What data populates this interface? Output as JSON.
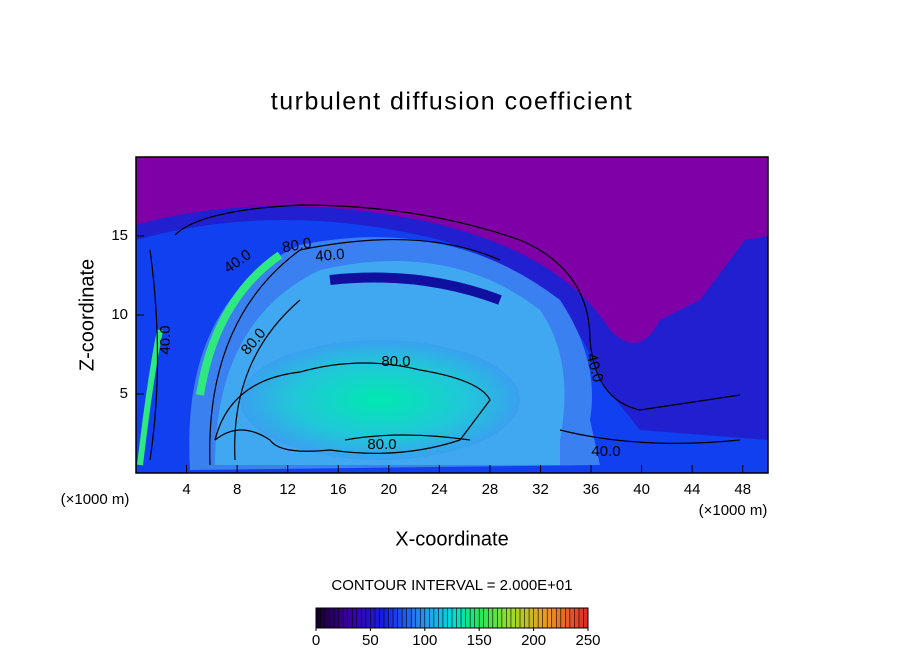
{
  "chart_data": {
    "type": "contour",
    "title": "turbulent diffusion coefficient",
    "xlabel": "X-coordinate",
    "ylabel": "Z-coordinate",
    "x_unit": "(×1000 m)",
    "xlim": [
      0,
      50
    ],
    "xticks": [
      4,
      8,
      12,
      16,
      20,
      24,
      28,
      32,
      36,
      40,
      44,
      48
    ],
    "ylim": [
      0,
      20
    ],
    "yticks": [
      5,
      10,
      15
    ],
    "contour_labels": [
      "80.0",
      "40.0",
      "40.0",
      "80.0",
      "80.0",
      "80.0",
      "40.0",
      "40.0",
      "40.0"
    ],
    "contour_interval": "CONTOUR INTERVAL = 2.000E+01",
    "colorbar": {
      "lim": [
        0,
        250
      ],
      "ticks": [
        0,
        50,
        100,
        150,
        200,
        250
      ]
    }
  }
}
